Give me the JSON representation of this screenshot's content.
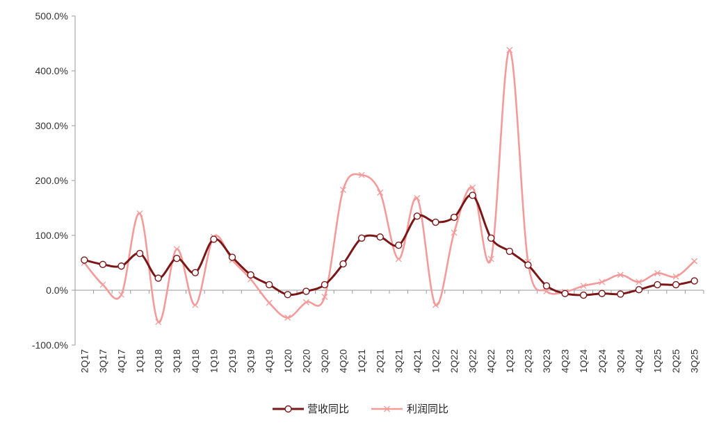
{
  "chart_data": {
    "type": "line",
    "categories": [
      "2Q17",
      "3Q17",
      "4Q17",
      "1Q18",
      "2Q18",
      "3Q18",
      "4Q18",
      "1Q19",
      "2Q19",
      "3Q19",
      "4Q19",
      "1Q20",
      "2Q20",
      "3Q20",
      "4Q20",
      "1Q21",
      "2Q21",
      "3Q21",
      "4Q21",
      "1Q22",
      "2Q22",
      "3Q22",
      "4Q22",
      "1Q23",
      "2Q23",
      "3Q23",
      "4Q23",
      "1Q24",
      "2Q24",
      "3Q24",
      "4Q24",
      "1Q25",
      "2Q25",
      "3Q25"
    ],
    "series": [
      {
        "name": "营收同比",
        "color": "#7a1616",
        "marker": "circle",
        "values": [
          55,
          47,
          44,
          67,
          22,
          58,
          32,
          93,
          60,
          28,
          10,
          -8,
          -2,
          10,
          48,
          95,
          97,
          82,
          135,
          124,
          133,
          173,
          95,
          71,
          46,
          8,
          -6,
          -9,
          -6,
          -7,
          1,
          10,
          10,
          17
        ]
      },
      {
        "name": "利润同比",
        "color": "#f49a9a",
        "marker": "x",
        "values": [
          50,
          10,
          -8,
          140,
          -58,
          75,
          -27,
          97,
          55,
          20,
          -23,
          -50,
          -22,
          -12,
          183,
          210,
          178,
          57,
          168,
          -27,
          105,
          187,
          57,
          438,
          52,
          -2,
          -3,
          8,
          15,
          28,
          15,
          31,
          25,
          53
        ]
      }
    ],
    "ylim": [
      -100,
      500
    ],
    "yticks": [
      -100,
      0,
      100,
      200,
      300,
      400,
      500
    ],
    "ytick_labels": [
      "-100.0%",
      "0.0%",
      "100.0%",
      "200.0%",
      "300.0%",
      "400.0%",
      "500.0%"
    ],
    "legend_position": "bottom-center",
    "grid": false
  }
}
